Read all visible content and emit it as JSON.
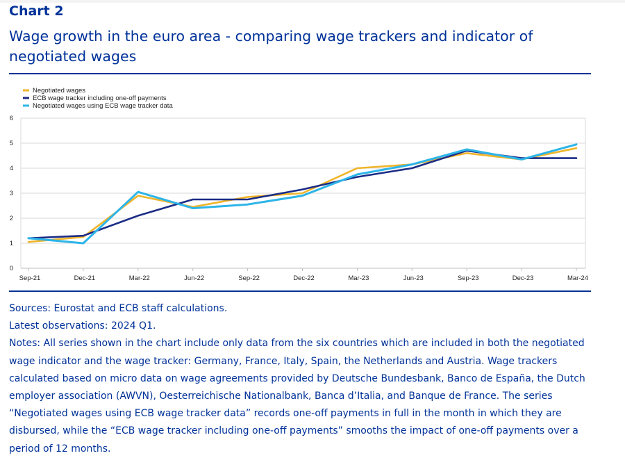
{
  "header": {
    "label": "Chart 2",
    "title": "Wage growth in the euro area - comparing wage trackers and indicator of negotiated wages"
  },
  "colors": {
    "accent": "#003299",
    "negotiated": "#F0B52A",
    "tracker": "#1B2C86",
    "negotiated_tracker": "#2DB5E8",
    "grid": "#D9D9D9"
  },
  "chart_data": {
    "type": "line",
    "title": "Wage growth in the euro area - comparing wage trackers and indicator of negotiated wages",
    "xlabel": "",
    "ylabel": "",
    "ylim": [
      0,
      6
    ],
    "yticks": [
      0,
      1,
      2,
      3,
      4,
      5,
      6
    ],
    "grid": true,
    "legend_position": "top-left",
    "x": [
      "Sep-21",
      "Dec-21",
      "Mar-22",
      "Jun-22",
      "Sep-22",
      "Dec-22",
      "Mar-23",
      "Jun-23",
      "Sep-23",
      "Dec-23",
      "Mar-24"
    ],
    "series": [
      {
        "name": "Negotiated wages",
        "color_key": "negotiated",
        "width": 2.6,
        "values": [
          1.05,
          1.25,
          2.9,
          2.45,
          2.85,
          3.0,
          4.0,
          4.15,
          4.6,
          4.35,
          4.8
        ]
      },
      {
        "name": "ECB wage tracker including one-off payments",
        "color_key": "tracker",
        "width": 2.6,
        "values": [
          1.2,
          1.3,
          2.1,
          2.75,
          2.75,
          3.15,
          3.65,
          4.0,
          4.7,
          4.4,
          4.4
        ]
      },
      {
        "name": "Negotiated wages using ECB wage tracker data",
        "color_key": "negotiated_tracker",
        "width": 3.0,
        "values": [
          1.2,
          1.0,
          3.05,
          2.4,
          2.55,
          2.9,
          3.75,
          4.15,
          4.75,
          4.35,
          4.95
        ]
      }
    ]
  },
  "notes": {
    "sources": "Sources: Eurostat and ECB staff calculations.",
    "latest": "Latest observations: 2024 Q1.",
    "text": "Notes: All series shown in the chart include only data from the six countries which are included in both the negotiated wage indicator and the wage tracker: Germany, France, Italy, Spain, the Netherlands and Austria. Wage trackers calculated based on micro data on wage agreements provided by Deutsche Bundesbank, Banco de España, the Dutch employer association (AWVN), Oesterreichische Nationalbank, Banca d’Italia, and Banque de France. The series “Negotiated wages using ECB wage tracker data” records one-off payments in full in the month in which they are disbursed, while the “ECB wage tracker including one-off payments” smooths the impact of one-off payments over a period of 12 months."
  }
}
